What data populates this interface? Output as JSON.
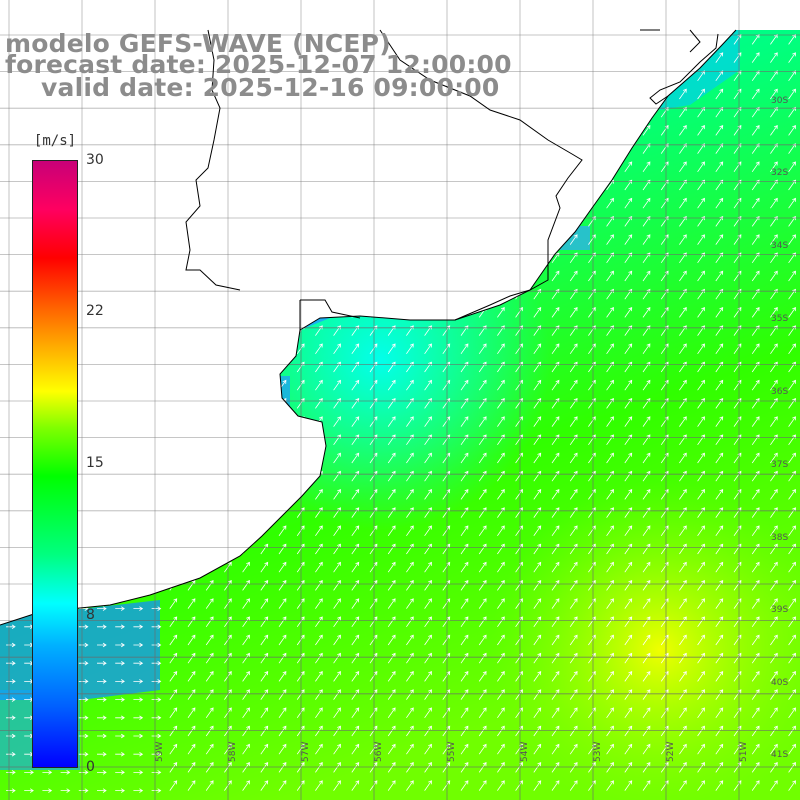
{
  "header": {
    "line1": "modelo GEFS-WAVE (NCEP)",
    "line2": "forecast date: 2025-12-07 12:00:00",
    "line3": "valid date: 2025-12-16 09:00:00"
  },
  "colorbar": {
    "unit": "[m/s]",
    "ticks": [
      "30",
      "22",
      "15",
      "8",
      "0"
    ],
    "tick_values": [
      30,
      22,
      15,
      8,
      0
    ]
  },
  "map": {
    "lat_labels": [
      "30S",
      "32S",
      "34S",
      "35S",
      "36S",
      "37S",
      "38S",
      "39S",
      "40S",
      "41S"
    ],
    "lon_labels": [
      "59W",
      "58W",
      "57W",
      "56W",
      "55W",
      "54W",
      "53W",
      "52W",
      "51W"
    ],
    "colors": {
      "land": "#ffffff",
      "coast": "#000000",
      "grid": "#777777",
      "arrow": "#ffffff"
    }
  }
}
